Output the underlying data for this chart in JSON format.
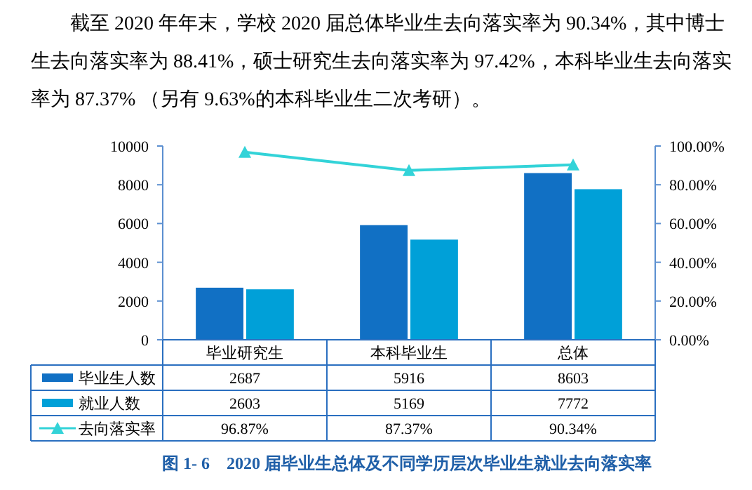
{
  "chart_data": {
    "type": "bar",
    "title": "图 1- 6　2020 届毕业生总体及不同学历层次毕业生就业去向落实率",
    "annotations": [
      "截至 2020 年年末，学校 2020 届总体毕业生去向落实率为 90.34%，其中博士生去向落实率为 88.41%，硕士研究生去向落实率为 97.42%，本科毕业生去向落实率为 87.37% （另有 9.63%的本科毕业生二次考研）。"
    ],
    "categories": [
      "毕业研究生",
      "本科毕业生",
      "总体"
    ],
    "series": [
      {
        "name": "毕业生人数",
        "color": "#1170c4",
        "values": [
          2687,
          5916,
          8603
        ],
        "value_labels": [
          "2687",
          "5916",
          "8603"
        ]
      },
      {
        "name": "就业人数",
        "color": "#00a0d8",
        "values": [
          2603,
          5169,
          7772
        ],
        "value_labels": [
          "2603",
          "5169",
          "7772"
        ]
      },
      {
        "name": "去向落实率",
        "type": "line",
        "axis": "y2",
        "color": "#33d3d8",
        "values": [
          96.87,
          87.37,
          90.34
        ],
        "value_labels": [
          "96.87%",
          "87.37%",
          "90.34%"
        ]
      }
    ],
    "ylim": [
      0,
      10000
    ],
    "yticks": [
      0,
      2000,
      4000,
      6000,
      8000,
      10000
    ],
    "y2lim": [
      0,
      100
    ],
    "y2ticks": [
      {
        "value": 0,
        "label": "0.00%"
      },
      {
        "value": 20,
        "label": "20.00%"
      },
      {
        "value": 40,
        "label": "40.00%"
      },
      {
        "value": 60,
        "label": "60.00%"
      },
      {
        "value": 80,
        "label": "80.00%"
      },
      {
        "value": 100,
        "label": "100.00%"
      }
    ],
    "marker": "triangle",
    "legend": "bottom",
    "grid": false
  }
}
